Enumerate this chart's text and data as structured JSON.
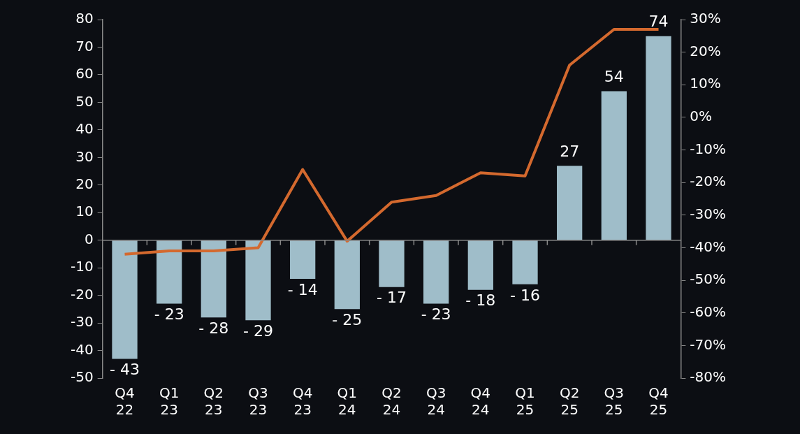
{
  "chart_data": {
    "type": "bar",
    "categories": [
      "Q4 22",
      "Q1 23",
      "Q2 23",
      "Q3 23",
      "Q4 23",
      "Q1 24",
      "Q2 24",
      "Q3 24",
      "Q4 24",
      "Q1 25",
      "Q2 25",
      "Q3 25",
      "Q4 25"
    ],
    "series": [
      {
        "color": "#9fbdc9",
        "values": [
          -43,
          -23,
          -28,
          -29,
          -14,
          -25,
          -17,
          -23,
          -18,
          -16,
          27,
          54,
          74
        ],
        "value_labels": [
          "- 43",
          "- 23",
          "- 28",
          "- 29",
          "- 14",
          "- 25",
          "- 17",
          "- 23",
          "- 18",
          "- 16",
          "27",
          "54",
          "74"
        ]
      },
      {
        "type": "line",
        "axis": "y2",
        "color": "#d4692e",
        "values": [
          -42,
          -41,
          -41,
          -40,
          -16,
          -38,
          -26,
          -24,
          -17,
          -18,
          16,
          27,
          27
        ]
      }
    ],
    "ylim": [
      -50,
      80
    ],
    "yticks": [
      -50,
      -40,
      -30,
      -20,
      -10,
      0,
      10,
      20,
      30,
      40,
      50,
      60,
      70,
      80
    ],
    "y2lim": [
      -80,
      30
    ],
    "y2ticks": [
      {
        "value": -80,
        "label": "-80%"
      },
      {
        "value": -70,
        "label": "-70%"
      },
      {
        "value": -60,
        "label": "-60%"
      },
      {
        "value": -50,
        "label": "-50%"
      },
      {
        "value": -40,
        "label": "-40%"
      },
      {
        "value": -30,
        "label": "-30%"
      },
      {
        "value": -20,
        "label": "-20%"
      },
      {
        "value": -10,
        "label": "-10%"
      },
      {
        "value": 0,
        "label": "0%"
      },
      {
        "value": 10,
        "label": "10%"
      },
      {
        "value": 20,
        "label": "20%"
      },
      {
        "value": 30,
        "label": "30%"
      }
    ],
    "legend": false,
    "marker": "none",
    "line_style": "solid"
  }
}
